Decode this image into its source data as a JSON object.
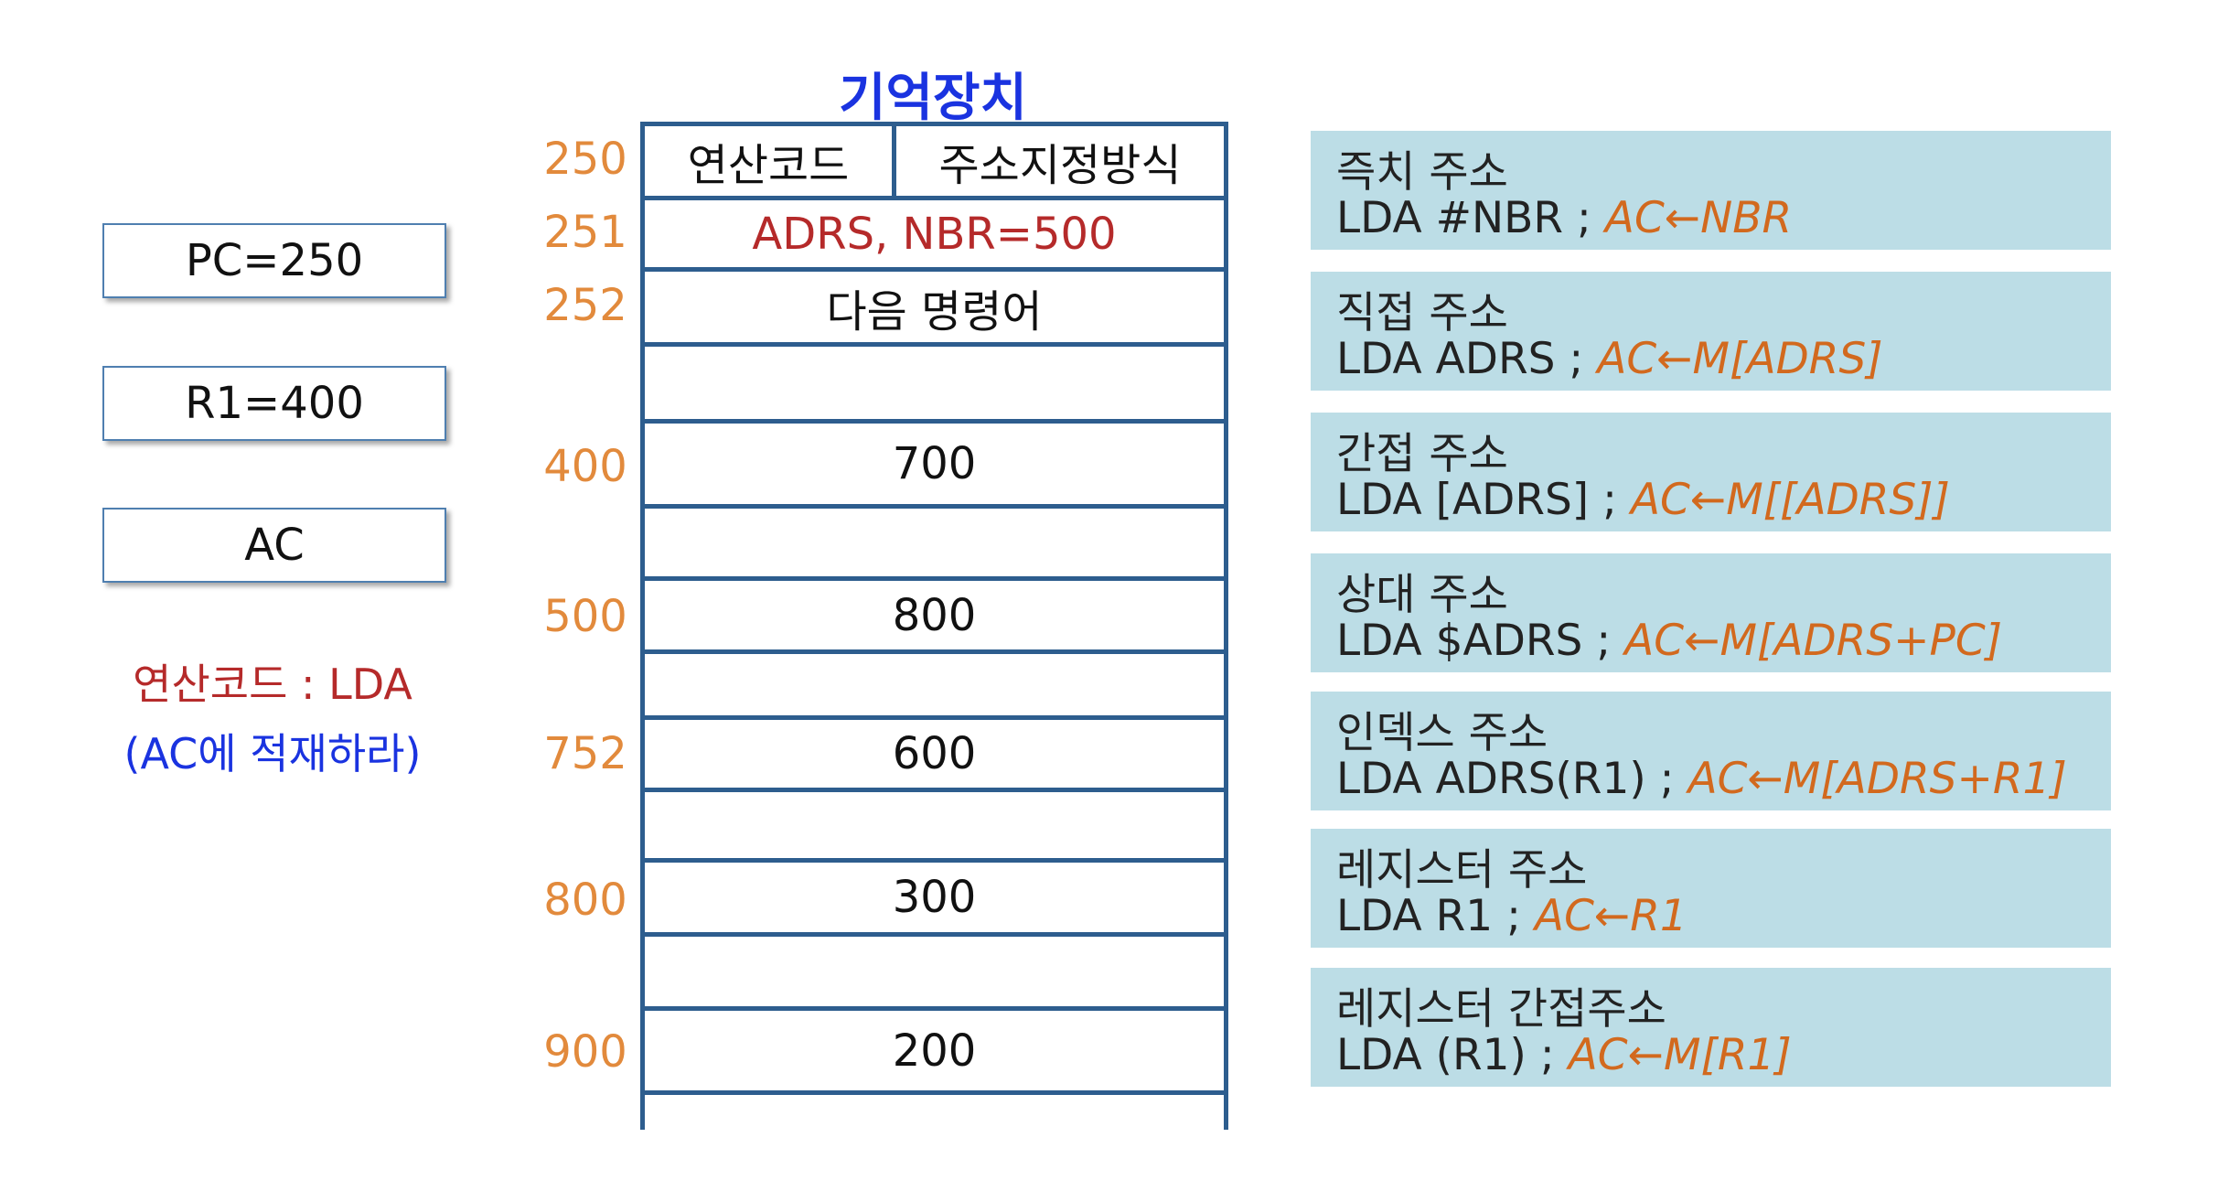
{
  "registers": [
    {
      "label": "PC=250"
    },
    {
      "label": "R1=400"
    },
    {
      "label": "AC"
    }
  ],
  "opcode_note": {
    "line1": "연산코드 : LDA",
    "line2": "(AC에 적재하라)"
  },
  "memory": {
    "title": "기억장치",
    "header_left": "연산코드",
    "header_right": "주소지정방식",
    "rows": [
      {
        "addr": "250",
        "content": ""
      },
      {
        "addr": "251",
        "content": "ADRS, NBR=500"
      },
      {
        "addr": "252",
        "content": "다음 명령어"
      },
      {
        "addr": "",
        "content": ""
      },
      {
        "addr": "400",
        "content": "700"
      },
      {
        "addr": "",
        "content": ""
      },
      {
        "addr": "500",
        "content": "800"
      },
      {
        "addr": "",
        "content": ""
      },
      {
        "addr": "752",
        "content": "600"
      },
      {
        "addr": "",
        "content": ""
      },
      {
        "addr": "800",
        "content": "300"
      },
      {
        "addr": "",
        "content": ""
      },
      {
        "addr": "900",
        "content": "200"
      }
    ]
  },
  "modes": [
    {
      "title": "즉치 주소",
      "syntax": "LDA #NBR ; ",
      "effect": "AC←NBR"
    },
    {
      "title": "직접 주소",
      "syntax": "LDA ADRS ; ",
      "effect": "AC←M[ADRS]"
    },
    {
      "title": "간접 주소",
      "syntax": "LDA [ADRS] ; ",
      "effect": "AC←M[[ADRS]]"
    },
    {
      "title": "상대 주소",
      "syntax": "LDA $ADRS ; ",
      "effect": "AC←M[ADRS+PC]"
    },
    {
      "title": "인덱스 주소",
      "syntax": "LDA ADRS(R1) ; ",
      "effect": "AC←M[ADRS+R1]"
    },
    {
      "title": "레지스터 주소",
      "syntax": "LDA R1 ; ",
      "effect": "AC←R1"
    },
    {
      "title": "레지스터 간접주소",
      "syntax": "LDA (R1) ; ",
      "effect": "AC←M[R1]"
    }
  ],
  "colors": {
    "memory_border": "#2d5d8e",
    "address_text": "#e28a3c",
    "mode_box": "#bcdde6",
    "effect_text": "#d2691e",
    "title_blue": "#1a33e0",
    "note_red": "#b52a2a"
  }
}
